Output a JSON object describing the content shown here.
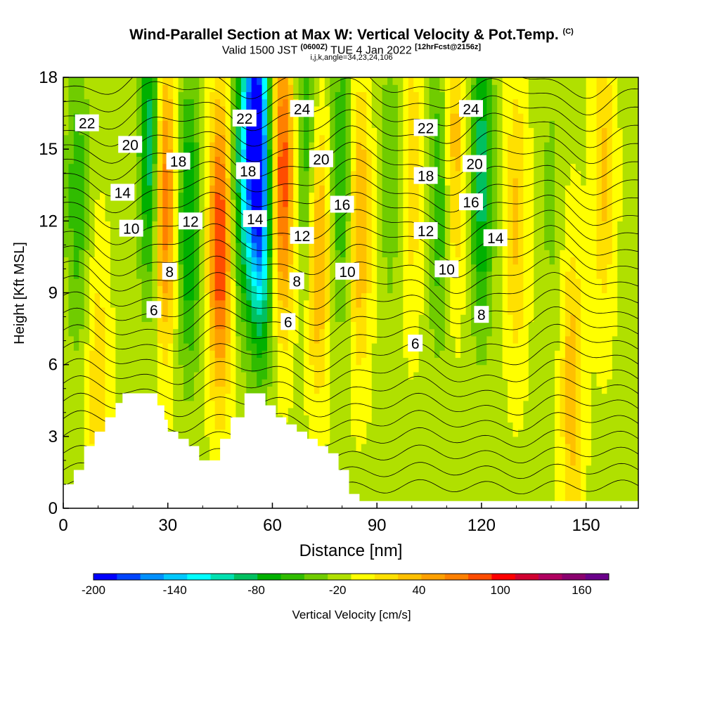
{
  "chart_data": {
    "type": "heatmap",
    "title": "Wind-Parallel Section at Max W: Vertical Velocity & Pot.Temp.",
    "title_mark": "(C)",
    "subtitle_valid": "Valid 1500 JST",
    "subtitle_utc": "(0600Z)",
    "subtitle_date": "TUE 4 Jan 2022",
    "subtitle_fcst": "[12hrFcst@2156z]",
    "subtitle2": "i,j,k,angle=34,23,24,106",
    "xlabel": "Distance [nm]",
    "ylabel": "Height [Kft MSL]",
    "xlim": [
      0,
      165
    ],
    "ylim": [
      0,
      18
    ],
    "xticks": [
      0,
      30,
      60,
      90,
      120,
      150
    ],
    "yticks": [
      0,
      3,
      6,
      9,
      12,
      15,
      18
    ],
    "colorbar": {
      "label": "Vertical Velocity [cm/s]",
      "min": -200,
      "max": 180,
      "step": 20,
      "tick_labels": [
        "-200",
        "-140",
        "-80",
        "-20",
        "40",
        "100",
        "160"
      ],
      "tick_values": [
        -200,
        -140,
        -80,
        -20,
        40,
        100,
        160
      ],
      "colors": [
        "#0000ff",
        "#0044ff",
        "#0090ff",
        "#00c8ff",
        "#00ffff",
        "#00e0b0",
        "#00c060",
        "#00b000",
        "#30bc00",
        "#70cc00",
        "#b0e000",
        "#ffff00",
        "#ffe000",
        "#ffc000",
        "#ffa000",
        "#ff8000",
        "#ff4c00",
        "#ff0000",
        "#d00030",
        "#b00060",
        "#8a006e",
        "#6a008a"
      ]
    },
    "terrain_kft": [
      [
        0,
        1.0
      ],
      [
        3,
        1.0
      ],
      [
        3,
        1.6
      ],
      [
        6,
        1.6
      ],
      [
        6,
        2.6
      ],
      [
        9,
        2.6
      ],
      [
        9,
        3.2
      ],
      [
        12,
        3.2
      ],
      [
        12,
        3.8
      ],
      [
        15,
        3.8
      ],
      [
        15,
        4.4
      ],
      [
        17,
        4.4
      ],
      [
        17,
        4.8
      ],
      [
        27,
        4.8
      ],
      [
        27,
        4.3
      ],
      [
        29,
        4.3
      ],
      [
        29,
        3.7
      ],
      [
        30,
        3.7
      ],
      [
        30,
        3.2
      ],
      [
        33,
        3.2
      ],
      [
        33,
        2.9
      ],
      [
        36,
        2.9
      ],
      [
        36,
        2.6
      ],
      [
        39,
        2.6
      ],
      [
        39,
        2.0
      ],
      [
        45,
        2.0
      ],
      [
        45,
        2.9
      ],
      [
        48,
        2.9
      ],
      [
        48,
        3.8
      ],
      [
        52,
        3.8
      ],
      [
        52,
        4.8
      ],
      [
        58,
        4.8
      ],
      [
        58,
        4.3
      ],
      [
        61,
        4.3
      ],
      [
        61,
        3.8
      ],
      [
        64,
        3.8
      ],
      [
        64,
        3.5
      ],
      [
        67,
        3.5
      ],
      [
        67,
        3.2
      ],
      [
        70,
        3.2
      ],
      [
        70,
        2.9
      ],
      [
        73,
        2.9
      ],
      [
        73,
        2.6
      ],
      [
        76,
        2.6
      ],
      [
        76,
        2.3
      ],
      [
        79,
        2.3
      ],
      [
        79,
        1.6
      ],
      [
        82,
        1.6
      ],
      [
        82,
        0.6
      ],
      [
        85,
        0.6
      ],
      [
        85,
        0.3
      ],
      [
        165,
        0.3
      ]
    ],
    "theta_contour_labels": [
      {
        "text": "22",
        "x": 6.8,
        "y": 16.1
      },
      {
        "text": "20",
        "x": 19.2,
        "y": 15.2
      },
      {
        "text": "18",
        "x": 33,
        "y": 14.5
      },
      {
        "text": "14",
        "x": 17,
        "y": 13.2
      },
      {
        "text": "12",
        "x": 36.5,
        "y": 12.0
      },
      {
        "text": "10",
        "x": 19.5,
        "y": 11.7
      },
      {
        "text": "8",
        "x": 30.5,
        "y": 9.9
      },
      {
        "text": "6",
        "x": 26,
        "y": 8.3
      },
      {
        "text": "22",
        "x": 52,
        "y": 16.3
      },
      {
        "text": "18",
        "x": 53,
        "y": 14.1
      },
      {
        "text": "14",
        "x": 55,
        "y": 12.1
      },
      {
        "text": "24",
        "x": 68.5,
        "y": 16.7
      },
      {
        "text": "20",
        "x": 74,
        "y": 14.6
      },
      {
        "text": "16",
        "x": 80,
        "y": 12.7
      },
      {
        "text": "12",
        "x": 68.5,
        "y": 11.4
      },
      {
        "text": "8",
        "x": 67,
        "y": 9.5
      },
      {
        "text": "6",
        "x": 64.5,
        "y": 7.8
      },
      {
        "text": "10",
        "x": 81.5,
        "y": 9.9
      },
      {
        "text": "22",
        "x": 104,
        "y": 15.9
      },
      {
        "text": "18",
        "x": 104,
        "y": 13.9
      },
      {
        "text": "12",
        "x": 104,
        "y": 11.6
      },
      {
        "text": "10",
        "x": 110,
        "y": 10.0
      },
      {
        "text": "6",
        "x": 101,
        "y": 6.9
      },
      {
        "text": "24",
        "x": 117,
        "y": 16.7
      },
      {
        "text": "20",
        "x": 118,
        "y": 14.4
      },
      {
        "text": "16",
        "x": 117,
        "y": 12.8
      },
      {
        "text": "14",
        "x": 124,
        "y": 11.3
      },
      {
        "text": "8",
        "x": 120,
        "y": 8.1
      }
    ],
    "velocity_centers_cms": [
      {
        "x": 4,
        "y": 13,
        "w": -50
      },
      {
        "x": 10,
        "y": 5,
        "w": 40
      },
      {
        "x": 25,
        "y": 15,
        "w": -100
      },
      {
        "x": 29,
        "y": 13,
        "w": 110
      },
      {
        "x": 36,
        "y": 12,
        "w": -80
      },
      {
        "x": 45,
        "y": 11,
        "w": 130
      },
      {
        "x": 51,
        "y": 14,
        "w": -70
      },
      {
        "x": 55,
        "y": 16,
        "w": -190
      },
      {
        "x": 57,
        "y": 12,
        "w": -110
      },
      {
        "x": 63,
        "y": 14,
        "w": 120
      },
      {
        "x": 70,
        "y": 15,
        "w": -60
      },
      {
        "x": 73,
        "y": 11,
        "w": 80
      },
      {
        "x": 80,
        "y": 14,
        "w": -60
      },
      {
        "x": 85,
        "y": 12,
        "w": 70
      },
      {
        "x": 94,
        "y": 14,
        "w": -30
      },
      {
        "x": 100,
        "y": 14,
        "w": 40
      },
      {
        "x": 108,
        "y": 13,
        "w": -60
      },
      {
        "x": 112,
        "y": 15,
        "w": 60
      },
      {
        "x": 120,
        "y": 14,
        "w": -90
      },
      {
        "x": 130,
        "y": 12,
        "w": 50
      },
      {
        "x": 140,
        "y": 13,
        "w": -20
      },
      {
        "x": 146,
        "y": 5,
        "w": 60
      },
      {
        "x": 155,
        "y": 14,
        "w": 50
      }
    ]
  }
}
